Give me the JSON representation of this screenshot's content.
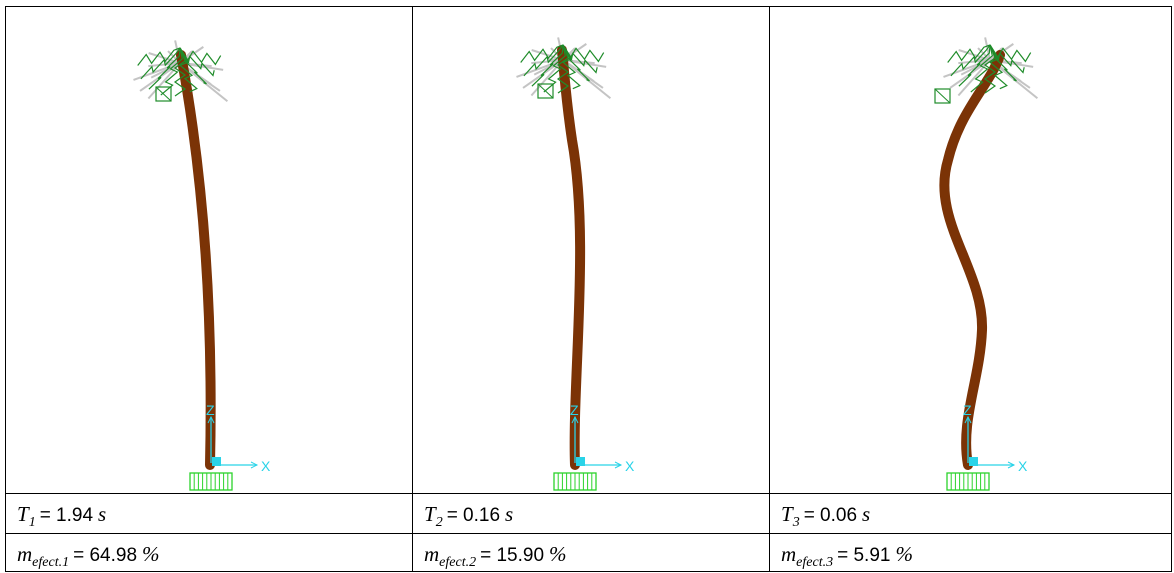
{
  "columns": [
    {
      "axes": {
        "z": "Z",
        "x": "X"
      },
      "period": {
        "symbol": "T",
        "sub": "1",
        "value": "= 1.94",
        "unit": "s"
      },
      "mass": {
        "symbol": "m",
        "sub": "efect.1",
        "value": "= 64.98",
        "unit": "%"
      }
    },
    {
      "axes": {
        "z": "Z",
        "x": "X"
      },
      "period": {
        "symbol": "T",
        "sub": "2",
        "value": "= 0.16",
        "unit": "s"
      },
      "mass": {
        "symbol": "m",
        "sub": "efect.2",
        "value": "= 15.90",
        "unit": "%"
      }
    },
    {
      "axes": {
        "z": "Z",
        "x": "X"
      },
      "period": {
        "symbol": "T",
        "sub": "3",
        "value": "= 0.06",
        "unit": "s"
      },
      "mass": {
        "symbol": "m",
        "sub": "efect.3",
        "value": "= 5.91",
        "unit": "%"
      }
    }
  ]
}
